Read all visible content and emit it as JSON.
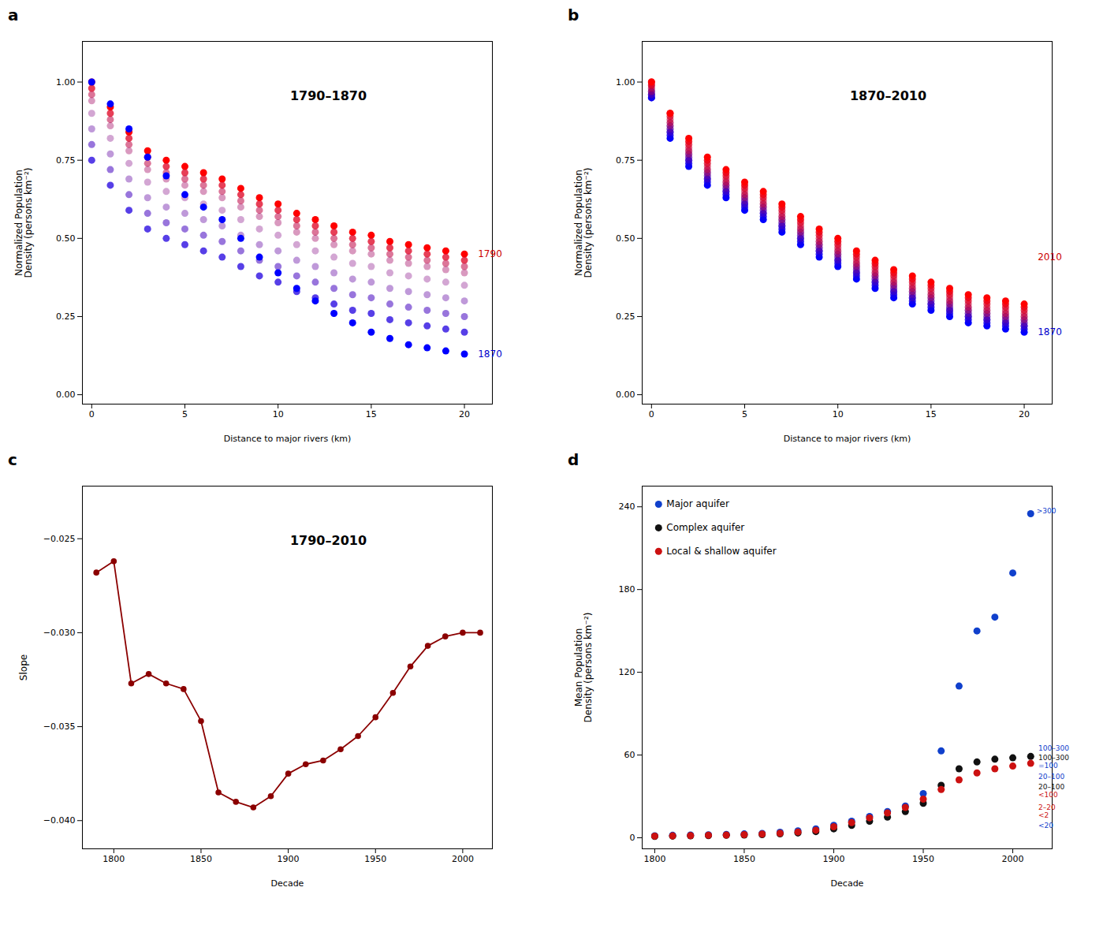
{
  "chart_data": [
    {
      "type": "scatter",
      "title": "1790–1870",
      "xlabel": "Distance to major rivers (km)",
      "ylabel": "Normalized Population\nDensity (persons km⁻²)",
      "x": [
        0,
        1,
        2,
        3,
        4,
        5,
        6,
        7,
        8,
        9,
        10,
        11,
        12,
        13,
        14,
        15,
        16,
        17,
        18,
        19,
        20
      ],
      "series": [
        {
          "color": "#ff0000",
          "values": [
            1.0,
            0.92,
            0.84,
            0.78,
            0.75,
            0.73,
            0.71,
            0.69,
            0.66,
            0.63,
            0.61,
            0.58,
            0.56,
            0.54,
            0.52,
            0.51,
            0.49,
            0.48,
            0.47,
            0.46,
            0.45
          ]
        },
        {
          "color": "#df0020",
          "values": [
            0.98,
            0.9,
            0.82,
            0.76,
            0.73,
            0.71,
            0.69,
            0.67,
            0.64,
            0.61,
            0.59,
            0.56,
            0.54,
            0.52,
            0.5,
            0.49,
            0.47,
            0.46,
            0.45,
            0.44,
            0.43
          ]
        },
        {
          "color": "#bf0040",
          "values": [
            0.96,
            0.88,
            0.8,
            0.74,
            0.71,
            0.69,
            0.67,
            0.65,
            0.62,
            0.59,
            0.57,
            0.54,
            0.52,
            0.5,
            0.48,
            0.47,
            0.45,
            0.44,
            0.43,
            0.42,
            0.41
          ]
        },
        {
          "color": "#9f0060",
          "values": [
            0.94,
            0.86,
            0.78,
            0.72,
            0.69,
            0.67,
            0.65,
            0.63,
            0.6,
            0.57,
            0.55,
            0.52,
            0.5,
            0.48,
            0.46,
            0.45,
            0.43,
            0.42,
            0.41,
            0.4,
            0.39
          ]
        },
        {
          "color": "#800080",
          "values": [
            0.9,
            0.82,
            0.74,
            0.68,
            0.65,
            0.63,
            0.61,
            0.59,
            0.56,
            0.53,
            0.51,
            0.48,
            0.46,
            0.44,
            0.42,
            0.41,
            0.39,
            0.38,
            0.37,
            0.36,
            0.35
          ]
        },
        {
          "color": "#60009f",
          "values": [
            0.85,
            0.77,
            0.69,
            0.63,
            0.6,
            0.58,
            0.56,
            0.54,
            0.51,
            0.48,
            0.46,
            0.43,
            0.41,
            0.39,
            0.37,
            0.36,
            0.34,
            0.33,
            0.32,
            0.31,
            0.3
          ]
        },
        {
          "color": "#4000bf",
          "values": [
            0.8,
            0.72,
            0.64,
            0.58,
            0.55,
            0.53,
            0.51,
            0.49,
            0.46,
            0.43,
            0.41,
            0.38,
            0.36,
            0.34,
            0.32,
            0.31,
            0.29,
            0.28,
            0.27,
            0.26,
            0.25
          ]
        },
        {
          "color": "#2000df",
          "values": [
            0.75,
            0.67,
            0.59,
            0.53,
            0.5,
            0.48,
            0.46,
            0.44,
            0.41,
            0.38,
            0.36,
            0.33,
            0.31,
            0.29,
            0.27,
            0.26,
            0.24,
            0.23,
            0.22,
            0.21,
            0.2
          ]
        },
        {
          "color": "#0000ff",
          "values": [
            1.0,
            0.93,
            0.85,
            0.76,
            0.7,
            0.64,
            0.6,
            0.56,
            0.5,
            0.44,
            0.39,
            0.34,
            0.3,
            0.26,
            0.23,
            0.2,
            0.18,
            0.16,
            0.15,
            0.14,
            0.13
          ]
        }
      ],
      "xlim": [
        -0.5,
        21.5
      ],
      "xticks": [
        0,
        5,
        10,
        15,
        20
      ],
      "ylim": [
        -0.03,
        1.13
      ],
      "yticks": [
        {
          "value": 0,
          "label": "0.00"
        },
        0.25,
        {
          "value": 0.5,
          "label": "0.50"
        },
        0.75,
        {
          "value": 1,
          "label": "1.00"
        }
      ],
      "grid": false,
      "annotations": [
        {
          "text": "a"
        },
        {
          "text": "1790",
          "x": 20.6,
          "y": 0.45,
          "color": "#CC0000"
        },
        {
          "text": "1870",
          "x": 20.6,
          "y": 0.13,
          "color": "#0000CC"
        }
      ]
    },
    {
      "type": "scatter",
      "title": "1870–2010",
      "xlabel": "Distance to major rivers (km)",
      "ylabel": "Normalized Population\nDensity (persons km⁻²)",
      "x": [
        0,
        1,
        2,
        3,
        4,
        5,
        6,
        7,
        8,
        9,
        10,
        11,
        12,
        13,
        14,
        15,
        16,
        17,
        18,
        19,
        20
      ],
      "series": [
        {
          "color": "#0000ff",
          "values": [
            0.95,
            0.82,
            0.73,
            0.67,
            0.63,
            0.59,
            0.56,
            0.52,
            0.48,
            0.44,
            0.41,
            0.37,
            0.34,
            0.31,
            0.29,
            0.27,
            0.25,
            0.23,
            0.22,
            0.21,
            0.2
          ]
        },
        {
          "color": "#1200ed",
          "values": [
            0.95,
            0.83,
            0.74,
            0.68,
            0.64,
            0.6,
            0.57,
            0.53,
            0.49,
            0.45,
            0.42,
            0.38,
            0.35,
            0.32,
            0.3,
            0.28,
            0.26,
            0.24,
            0.23,
            0.22,
            0.21
          ]
        },
        {
          "color": "#2400db",
          "values": [
            0.96,
            0.84,
            0.75,
            0.69,
            0.65,
            0.61,
            0.58,
            0.54,
            0.5,
            0.46,
            0.43,
            0.39,
            0.36,
            0.33,
            0.31,
            0.29,
            0.27,
            0.25,
            0.24,
            0.23,
            0.22
          ]
        },
        {
          "color": "#3700c8",
          "values": [
            0.96,
            0.84,
            0.75,
            0.69,
            0.65,
            0.61,
            0.58,
            0.54,
            0.5,
            0.46,
            0.43,
            0.39,
            0.36,
            0.33,
            0.31,
            0.29,
            0.27,
            0.25,
            0.24,
            0.23,
            0.22
          ]
        },
        {
          "color": "#4900b6",
          "values": [
            0.96,
            0.85,
            0.76,
            0.7,
            0.66,
            0.62,
            0.59,
            0.55,
            0.51,
            0.47,
            0.44,
            0.4,
            0.37,
            0.34,
            0.32,
            0.3,
            0.28,
            0.26,
            0.25,
            0.24,
            0.23
          ]
        },
        {
          "color": "#5b00a4",
          "values": [
            0.97,
            0.85,
            0.76,
            0.7,
            0.66,
            0.62,
            0.59,
            0.55,
            0.51,
            0.47,
            0.44,
            0.4,
            0.37,
            0.34,
            0.32,
            0.3,
            0.28,
            0.26,
            0.25,
            0.24,
            0.23
          ]
        },
        {
          "color": "#6d0092",
          "values": [
            0.97,
            0.86,
            0.77,
            0.71,
            0.67,
            0.63,
            0.6,
            0.56,
            0.52,
            0.48,
            0.45,
            0.41,
            0.38,
            0.35,
            0.33,
            0.31,
            0.29,
            0.27,
            0.26,
            0.25,
            0.24
          ]
        },
        {
          "color": "#800080",
          "values": [
            0.97,
            0.86,
            0.77,
            0.71,
            0.67,
            0.63,
            0.6,
            0.56,
            0.52,
            0.48,
            0.45,
            0.41,
            0.38,
            0.35,
            0.33,
            0.31,
            0.29,
            0.27,
            0.26,
            0.25,
            0.24
          ]
        },
        {
          "color": "#92006d",
          "values": [
            0.97,
            0.86,
            0.77,
            0.71,
            0.67,
            0.63,
            0.6,
            0.56,
            0.52,
            0.48,
            0.45,
            0.41,
            0.38,
            0.35,
            0.33,
            0.31,
            0.29,
            0.27,
            0.26,
            0.25,
            0.24
          ]
        },
        {
          "color": "#a4005b",
          "values": [
            0.98,
            0.87,
            0.78,
            0.72,
            0.68,
            0.64,
            0.61,
            0.57,
            0.53,
            0.49,
            0.46,
            0.42,
            0.39,
            0.36,
            0.34,
            0.32,
            0.3,
            0.28,
            0.27,
            0.26,
            0.25
          ]
        },
        {
          "color": "#b60049",
          "values": [
            0.98,
            0.87,
            0.78,
            0.72,
            0.68,
            0.64,
            0.61,
            0.57,
            0.53,
            0.49,
            0.46,
            0.42,
            0.39,
            0.36,
            0.34,
            0.32,
            0.3,
            0.28,
            0.27,
            0.26,
            0.25
          ]
        },
        {
          "color": "#c80037",
          "values": [
            0.99,
            0.88,
            0.79,
            0.73,
            0.69,
            0.65,
            0.62,
            0.58,
            0.54,
            0.5,
            0.47,
            0.43,
            0.4,
            0.37,
            0.35,
            0.33,
            0.31,
            0.29,
            0.28,
            0.27,
            0.26
          ]
        },
        {
          "color": "#db0024",
          "values": [
            0.99,
            0.89,
            0.8,
            0.74,
            0.7,
            0.66,
            0.63,
            0.59,
            0.55,
            0.51,
            0.48,
            0.44,
            0.41,
            0.38,
            0.36,
            0.34,
            0.32,
            0.3,
            0.29,
            0.28,
            0.27
          ]
        },
        {
          "color": "#ed0012",
          "values": [
            1.0,
            0.9,
            0.81,
            0.75,
            0.71,
            0.67,
            0.64,
            0.6,
            0.56,
            0.52,
            0.49,
            0.45,
            0.42,
            0.39,
            0.37,
            0.35,
            0.33,
            0.31,
            0.3,
            0.29,
            0.28
          ]
        },
        {
          "color": "#ff0000",
          "values": [
            1.0,
            0.9,
            0.82,
            0.76,
            0.72,
            0.68,
            0.65,
            0.61,
            0.57,
            0.53,
            0.5,
            0.46,
            0.43,
            0.4,
            0.38,
            0.36,
            0.34,
            0.32,
            0.31,
            0.3,
            0.29
          ]
        }
      ],
      "xlim": [
        -0.5,
        21.5
      ],
      "xticks": [
        0,
        5,
        10,
        15,
        20
      ],
      "ylim": [
        -0.03,
        1.13
      ],
      "yticks": [
        {
          "value": 0,
          "label": "0.00"
        },
        0.25,
        {
          "value": 0.5,
          "label": "0.50"
        },
        0.75,
        {
          "value": 1,
          "label": "1.00"
        }
      ],
      "grid": false,
      "annotations": [
        {
          "text": "b"
        },
        {
          "text": "2010",
          "x": 20.6,
          "y": 0.44,
          "color": "#CC0000"
        },
        {
          "text": "1870",
          "x": 20.6,
          "y": 0.2,
          "color": "#0000CC"
        }
      ]
    },
    {
      "type": "line",
      "title": "1790–2010",
      "xlabel": "Decade",
      "ylabel": "Slope",
      "x": [
        1790,
        1800,
        1810,
        1820,
        1830,
        1840,
        1850,
        1860,
        1870,
        1880,
        1890,
        1900,
        1910,
        1920,
        1930,
        1940,
        1950,
        1960,
        1970,
        1980,
        1990,
        2000,
        2010
      ],
      "series": [
        {
          "color": "#8B0000",
          "marker": "circle",
          "values": [
            -0.0268,
            -0.0262,
            -0.0327,
            -0.0322,
            -0.0327,
            -0.033,
            -0.0347,
            -0.0385,
            -0.039,
            -0.0393,
            -0.0387,
            -0.0375,
            -0.037,
            -0.0368,
            -0.0362,
            -0.0355,
            -0.0345,
            -0.0332,
            -0.0318,
            -0.0307,
            -0.0302,
            -0.03,
            -0.03
          ]
        }
      ],
      "xlim": [
        1782,
        2017
      ],
      "xticks": [
        1800,
        1850,
        1900,
        1950,
        2000
      ],
      "ylim": [
        -0.0415,
        -0.0222
      ],
      "yticks": [
        {
          "value": -0.04,
          "label": "−0.040"
        },
        {
          "value": -0.035,
          "label": "−0.035"
        },
        {
          "value": -0.03,
          "label": "−0.030"
        },
        {
          "value": -0.025,
          "label": "−0.025"
        }
      ],
      "grid": false,
      "annotations": [
        {
          "text": "c"
        }
      ]
    },
    {
      "type": "scatter",
      "xlabel": "Decade",
      "ylabel": "Mean Population\nDensity (persons km⁻²)",
      "x": [
        1800,
        1810,
        1820,
        1830,
        1840,
        1850,
        1860,
        1870,
        1880,
        1890,
        1900,
        1910,
        1920,
        1930,
        1940,
        1950,
        1960,
        1970,
        1980,
        1990,
        2000,
        2010
      ],
      "series": [
        {
          "name": "Major aquifer",
          "color": "#1040CC",
          "values": [
            1.5,
            1.8,
            2.0,
            2.2,
            2.5,
            2.8,
            3.2,
            4.0,
            5.0,
            6.5,
            9.0,
            12.0,
            15.5,
            19.0,
            23.0,
            32.0,
            63.0,
            110.0,
            150.0,
            160.0,
            192.0,
            235.0
          ]
        },
        {
          "name": "Complex aquifer",
          "color": "#111111",
          "values": [
            1.0,
            1.2,
            1.4,
            1.6,
            1.8,
            2.0,
            2.3,
            2.8,
            3.5,
            4.5,
            6.5,
            9.0,
            12.0,
            15.0,
            19.0,
            25.0,
            38.0,
            50.0,
            55.0,
            57.0,
            58.0,
            59.0
          ]
        },
        {
          "name": "Local & shallow aquifer",
          "color": "#CC1111",
          "values": [
            1.2,
            1.4,
            1.6,
            1.8,
            2.0,
            2.3,
            2.7,
            3.3,
            4.2,
            5.5,
            8.0,
            11.0,
            14.5,
            18.0,
            22.0,
            28.0,
            35.0,
            42.0,
            47.0,
            50.0,
            52.0,
            54.0
          ]
        }
      ],
      "xlim": [
        1793,
        2022
      ],
      "xticks": [
        1800,
        1850,
        1900,
        1950,
        2000
      ],
      "ylim": [
        -8,
        255
      ],
      "yticks": [
        0,
        60,
        120,
        180,
        240
      ],
      "grid": false,
      "legend": "upper left",
      "annotations": [
        {
          "text": "d"
        },
        {
          "text": ">300",
          "x": 2012,
          "y": 237,
          "color": "#1040CC"
        },
        {
          "text": "100–300",
          "x": 2013,
          "y": 65,
          "color": "#1040CC"
        },
        {
          "text": "100–300",
          "x": 2013,
          "y": 58,
          "color": "#111111"
        },
        {
          "text": "=100",
          "x": 2013,
          "y": 52,
          "color": "#1040CC"
        },
        {
          "text": "20–100",
          "x": 2013,
          "y": 44,
          "color": "#1040CC"
        },
        {
          "text": "20–100",
          "x": 2013,
          "y": 37,
          "color": "#111111"
        },
        {
          "text": "<100",
          "x": 2013,
          "y": 31,
          "color": "#CC1111"
        },
        {
          "text": "2–20",
          "x": 2013,
          "y": 22,
          "color": "#CC1111"
        },
        {
          "text": "<2",
          "x": 2013,
          "y": 16,
          "color": "#CC1111"
        },
        {
          "text": "<20",
          "x": 2013,
          "y": 9,
          "color": "#1040CC"
        }
      ]
    }
  ]
}
